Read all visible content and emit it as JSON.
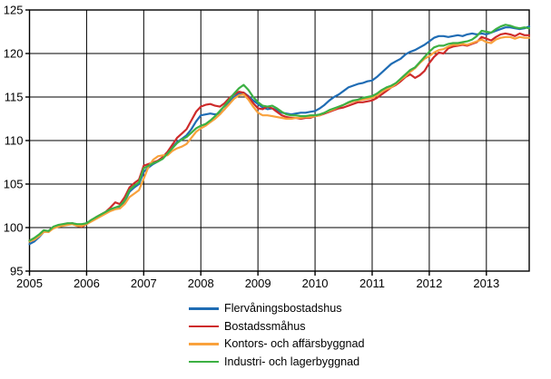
{
  "chart_data": {
    "type": "line",
    "title": "",
    "xlabel": "",
    "ylabel": "",
    "x_unit": "month",
    "x_start_year": 2005,
    "points_per_year": 12,
    "xlim": [
      2005,
      2013.75
    ],
    "ylim": [
      95,
      125
    ],
    "grid": true,
    "grid_color": "#000000",
    "axis_color": "#000000",
    "background_color": "#ffffff",
    "legend_position": "below-plot-left",
    "x_tick_labels": [
      "2005",
      "2006",
      "2007",
      "2008",
      "2009",
      "2010",
      "2011",
      "2012",
      "2013"
    ],
    "y_tick_labels": [
      "95",
      "100",
      "105",
      "110",
      "115",
      "120",
      "125"
    ],
    "y_ticks": [
      95,
      100,
      105,
      110,
      115,
      120,
      125
    ],
    "series": [
      {
        "name": "Flervåningsbostadshus",
        "color": "#1f6cb4",
        "values": [
          98.1,
          98.4,
          98.9,
          99.5,
          99.6,
          100.0,
          100.2,
          100.3,
          100.4,
          100.5,
          100.3,
          100.3,
          100.5,
          100.8,
          101.1,
          101.4,
          101.7,
          102.0,
          102.2,
          102.4,
          103.0,
          104.1,
          104.6,
          105.0,
          106.4,
          106.9,
          107.3,
          107.6,
          108.0,
          108.6,
          109.2,
          109.8,
          110.2,
          110.6,
          111.3,
          112.2,
          112.9,
          113.0,
          113.1,
          113.0,
          113.1,
          113.6,
          114.4,
          115.0,
          115.4,
          115.5,
          115.1,
          114.6,
          114.2,
          113.8,
          113.6,
          113.7,
          113.5,
          113.2,
          113.1,
          113.0,
          113.1,
          113.2,
          113.2,
          113.3,
          113.4,
          113.7,
          114.1,
          114.6,
          115.0,
          115.3,
          115.7,
          116.1,
          116.3,
          116.5,
          116.6,
          116.8,
          116.9,
          117.3,
          117.8,
          118.3,
          118.8,
          119.1,
          119.4,
          119.9,
          120.2,
          120.4,
          120.7,
          121.0,
          121.4,
          121.8,
          122.0,
          122.0,
          121.9,
          122.0,
          122.1,
          122.0,
          122.2,
          122.3,
          122.2,
          122.3,
          122.2,
          122.4,
          122.6,
          122.8,
          123.0,
          123.0,
          122.9,
          122.8,
          122.9,
          123.1
        ]
      },
      {
        "name": "Bostadssmåhus",
        "color": "#ce2b2b",
        "values": [
          98.5,
          98.7,
          99.1,
          99.6,
          99.5,
          100.0,
          100.2,
          100.3,
          100.4,
          100.5,
          100.2,
          100.1,
          100.4,
          100.8,
          101.2,
          101.5,
          101.8,
          102.3,
          102.9,
          102.7,
          103.5,
          104.6,
          105.1,
          105.5,
          107.1,
          107.3,
          107.5,
          107.7,
          108.1,
          108.7,
          109.5,
          110.3,
          110.8,
          111.3,
          112.3,
          113.3,
          113.9,
          114.1,
          114.2,
          114.0,
          113.9,
          114.3,
          114.9,
          115.3,
          115.6,
          115.5,
          115.0,
          114.3,
          113.7,
          113.6,
          113.9,
          113.7,
          113.3,
          112.9,
          112.7,
          112.6,
          112.6,
          112.5,
          112.6,
          112.6,
          112.8,
          112.9,
          113.1,
          113.3,
          113.5,
          113.7,
          113.8,
          114.0,
          114.2,
          114.4,
          114.4,
          114.5,
          114.6,
          114.9,
          115.3,
          115.7,
          116.1,
          116.4,
          116.8,
          117.3,
          117.6,
          117.2,
          117.5,
          118.0,
          118.9,
          119.6,
          120.1,
          120.0,
          120.6,
          120.8,
          120.9,
          121.0,
          120.9,
          121.1,
          121.3,
          121.9,
          121.7,
          121.5,
          121.9,
          122.2,
          122.3,
          122.2,
          122.0,
          122.3,
          122.1,
          122.1
        ]
      },
      {
        "name": "Kontors- och affärsbyggnad",
        "color": "#f9a13c",
        "values": [
          98.4,
          98.6,
          99.0,
          99.5,
          99.5,
          99.9,
          100.1,
          100.2,
          100.3,
          100.4,
          100.2,
          100.2,
          100.4,
          100.7,
          101.0,
          101.3,
          101.6,
          101.9,
          102.1,
          102.2,
          102.7,
          103.5,
          103.9,
          104.3,
          105.6,
          107.0,
          107.8,
          108.2,
          108.3,
          108.3,
          108.8,
          109.1,
          109.3,
          109.6,
          110.3,
          111.0,
          111.4,
          111.7,
          112.1,
          112.5,
          113.0,
          113.6,
          114.2,
          114.8,
          115.2,
          115.3,
          114.7,
          113.9,
          113.2,
          112.9,
          112.9,
          112.8,
          112.7,
          112.6,
          112.5,
          112.5,
          112.6,
          112.6,
          112.7,
          112.7,
          112.8,
          112.9,
          113.2,
          113.4,
          113.6,
          113.9,
          114.1,
          114.3,
          114.5,
          114.6,
          114.7,
          114.8,
          114.9,
          115.2,
          115.6,
          115.9,
          116.1,
          116.5,
          117.0,
          117.4,
          117.9,
          118.3,
          118.9,
          119.4,
          119.7,
          120.1,
          120.4,
          120.5,
          120.8,
          121.0,
          121.0,
          121.1,
          121.0,
          121.2,
          121.4,
          121.6,
          121.3,
          121.2,
          121.6,
          121.8,
          121.9,
          121.9,
          121.7,
          121.9,
          121.8,
          121.8
        ]
      },
      {
        "name": "Industri- och lagerbyggnad",
        "color": "#3cb043",
        "values": [
          98.5,
          98.8,
          99.2,
          99.7,
          99.6,
          100.1,
          100.3,
          100.4,
          100.5,
          100.5,
          100.4,
          100.4,
          100.5,
          100.9,
          101.2,
          101.5,
          101.8,
          102.1,
          102.3,
          102.5,
          103.1,
          104.3,
          104.8,
          105.2,
          106.8,
          107.1,
          107.4,
          107.6,
          107.9,
          108.5,
          109.1,
          109.7,
          110.1,
          110.4,
          110.9,
          111.4,
          111.7,
          111.9,
          112.3,
          112.8,
          113.4,
          114.0,
          114.7,
          115.4,
          116.0,
          116.4,
          115.8,
          115.0,
          114.4,
          114.0,
          113.9,
          114.0,
          113.7,
          113.3,
          113.0,
          112.9,
          112.9,
          112.8,
          112.8,
          112.9,
          112.9,
          113.0,
          113.2,
          113.5,
          113.7,
          113.9,
          114.1,
          114.4,
          114.6,
          114.7,
          114.9,
          115.0,
          115.1,
          115.4,
          115.8,
          116.1,
          116.3,
          116.6,
          117.1,
          117.6,
          118.1,
          118.4,
          119.0,
          119.6,
          120.2,
          120.7,
          120.9,
          120.9,
          121.1,
          121.2,
          121.2,
          121.3,
          121.4,
          121.6,
          122.0,
          122.6,
          122.5,
          122.4,
          122.8,
          123.1,
          123.3,
          123.2,
          123.0,
          122.9,
          123.0,
          122.9
        ]
      }
    ],
    "legend": [
      {
        "label": "Flervåningsbostadshus",
        "color": "#1f6cb4"
      },
      {
        "label": "Bostadssmåhus",
        "color": "#ce2b2b"
      },
      {
        "label": "Kontors- och affärsbyggnad",
        "color": "#f9a13c"
      },
      {
        "label": "Industri- och lagerbyggnad",
        "color": "#3cb043"
      }
    ]
  }
}
